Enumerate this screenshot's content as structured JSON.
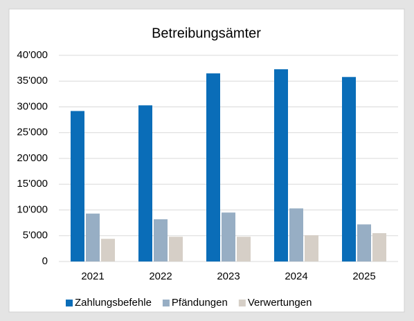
{
  "chart_data": {
    "type": "bar",
    "title": "Betreibungsämter",
    "categories": [
      "2021",
      "2022",
      "2023",
      "2024",
      "2025"
    ],
    "series": [
      {
        "name": "Zahlungsbefehle",
        "color": "#0a6db8",
        "values": [
          29200,
          30300,
          36500,
          37300,
          35800
        ]
      },
      {
        "name": "Pfändungen",
        "color": "#97aec4",
        "values": [
          9300,
          8200,
          9500,
          10300,
          7200
        ]
      },
      {
        "name": "Verwertungen",
        "color": "#d6cfc7",
        "values": [
          4400,
          4800,
          4800,
          5100,
          5500
        ]
      }
    ],
    "ylim": [
      0,
      40000
    ],
    "yticks": [
      0,
      {
        "value": 5000,
        "label": "5'000"
      },
      {
        "value": 10000,
        "label": "10'000"
      },
      {
        "value": 15000,
        "label": "15'000"
      },
      {
        "value": 20000,
        "label": "20'000"
      },
      {
        "value": 25000,
        "label": "25'000"
      },
      {
        "value": 30000,
        "label": "30'000"
      },
      {
        "value": 35000,
        "label": "35'000"
      },
      {
        "value": 40000,
        "label": "40'000"
      }
    ],
    "grid": true,
    "legend": "bottom"
  }
}
